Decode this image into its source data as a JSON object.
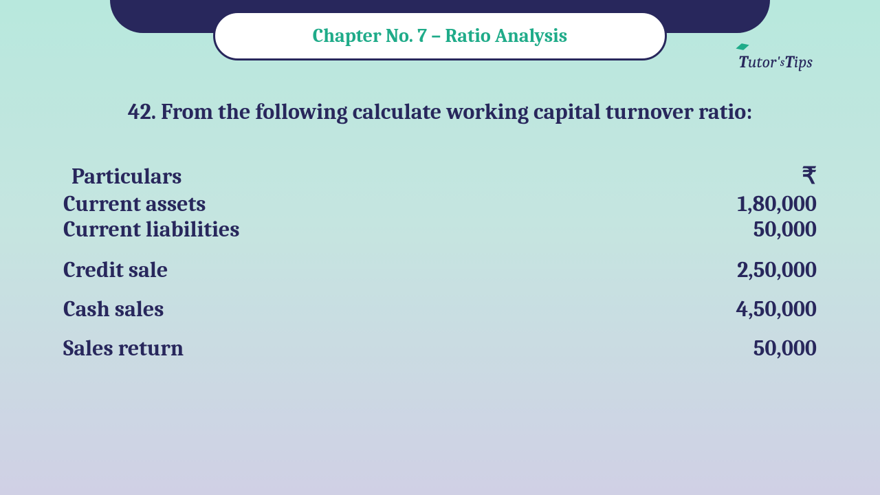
{
  "header": {
    "chapter_title": "Chapter No. 7 – Ratio Analysis"
  },
  "logo": {
    "t1": "T",
    "utor": "utor'",
    "s": "s",
    "t2": "T",
    "ips": "ips"
  },
  "question": {
    "text": "42. From the following calculate working capital turnover ratio:"
  },
  "table": {
    "header_label": "Particulars",
    "header_value": "₹",
    "rows": [
      {
        "label": "Current assets",
        "value": "1,80,000"
      },
      {
        "label": "Current liabilities",
        "value": "50,000"
      },
      {
        "label": "Credit sale",
        "value": "2,50,000"
      },
      {
        "label": "Cash sales",
        "value": "4,50,000"
      },
      {
        "label": "Sales return",
        "value": "50,000"
      }
    ]
  },
  "colors": {
    "bg_top": "#b8e8dd",
    "bg_mid": "#c5e5e0",
    "bg_bottom": "#d0d0e5",
    "dark_navy": "#28275c",
    "accent_green": "#1fab89",
    "white": "#ffffff"
  },
  "typography": {
    "chapter_fontsize": 28,
    "question_fontsize": 32,
    "row_fontsize": 32,
    "logo_fontsize": 24
  }
}
